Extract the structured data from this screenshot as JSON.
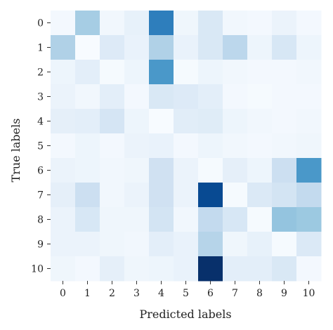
{
  "chart_data": {
    "type": "heatmap",
    "title": "",
    "xlabel": "Predicted labels",
    "ylabel": "True labels",
    "x_categories": [
      "0",
      "1",
      "2",
      "3",
      "4",
      "5",
      "6",
      "7",
      "8",
      "9",
      "10"
    ],
    "y_categories": [
      "0",
      "1",
      "2",
      "3",
      "4",
      "5",
      "6",
      "7",
      "8",
      "9",
      "10"
    ],
    "colormap": "Blues",
    "value_range": [
      0,
      1
    ],
    "grid": false,
    "legend": "none",
    "values": [
      [
        0.02,
        0.35,
        0.03,
        0.08,
        0.7,
        0.04,
        0.15,
        0.03,
        0.02,
        0.06,
        0.02
      ],
      [
        0.32,
        0.0,
        0.13,
        0.07,
        0.32,
        0.07,
        0.15,
        0.28,
        0.05,
        0.16,
        0.05
      ],
      [
        0.05,
        0.1,
        0.01,
        0.05,
        0.6,
        0.01,
        0.05,
        0.03,
        0.02,
        0.02,
        0.03
      ],
      [
        0.06,
        0.03,
        0.1,
        0.02,
        0.15,
        0.13,
        0.1,
        0.02,
        0.01,
        0.02,
        0.02
      ],
      [
        0.09,
        0.1,
        0.17,
        0.05,
        0.0,
        0.11,
        0.12,
        0.05,
        0.03,
        0.02,
        0.03
      ],
      [
        0.02,
        0.05,
        0.02,
        0.06,
        0.07,
        0.02,
        0.05,
        0.03,
        0.02,
        0.03,
        0.04
      ],
      [
        0.06,
        0.05,
        0.03,
        0.04,
        0.2,
        0.06,
        0.01,
        0.09,
        0.05,
        0.22,
        0.6
      ],
      [
        0.09,
        0.22,
        0.03,
        0.06,
        0.2,
        0.06,
        0.9,
        0.01,
        0.14,
        0.18,
        0.26
      ],
      [
        0.06,
        0.16,
        0.04,
        0.04,
        0.18,
        0.03,
        0.26,
        0.16,
        0.01,
        0.4,
        0.38
      ],
      [
        0.06,
        0.06,
        0.04,
        0.03,
        0.1,
        0.07,
        0.3,
        0.04,
        0.08,
        0.01,
        0.14
      ],
      [
        0.04,
        0.02,
        0.09,
        0.04,
        0.05,
        0.07,
        1.0,
        0.1,
        0.1,
        0.15,
        0.02
      ]
    ]
  }
}
